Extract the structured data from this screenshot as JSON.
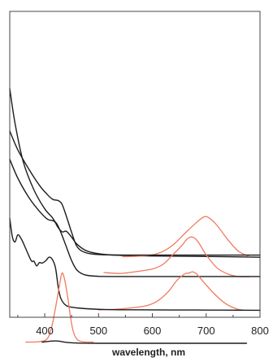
{
  "chart_data": {
    "type": "line",
    "title": "",
    "xlabel": "wavelength, nm",
    "ylabel": "",
    "xlim": [
      335,
      800
    ],
    "xticks": [
      400,
      500,
      600,
      700,
      800
    ],
    "grid": false,
    "legend": "none",
    "y_units": "arbitrary, vertically offset traces",
    "colors": {
      "absorption": "#1c1c1c",
      "emission": "#f07a5f"
    },
    "series": [
      {
        "kind": "absorption",
        "points": [
          [
            335,
            98
          ],
          [
            345,
            83
          ],
          [
            360,
            67
          ],
          [
            380,
            55
          ],
          [
            400,
            47
          ],
          [
            415,
            43
          ],
          [
            425,
            39
          ],
          [
            433,
            37.2
          ],
          [
            440,
            37.5
          ],
          [
            450,
            35
          ],
          [
            460,
            32
          ],
          [
            480,
            29
          ],
          [
            520,
            27.5
          ],
          [
            600,
            27
          ],
          [
            700,
            26.8
          ],
          [
            800,
            26.5
          ]
        ]
      },
      {
        "kind": "emission",
        "points": [
          [
            545,
            26.7
          ],
          [
            560,
            26.8
          ],
          [
            580,
            27
          ],
          [
            600,
            27.5
          ],
          [
            620,
            29
          ],
          [
            640,
            32
          ],
          [
            660,
            36.5
          ],
          [
            680,
            40.8
          ],
          [
            695,
            43.5
          ],
          [
            705,
            43.2
          ],
          [
            720,
            40
          ],
          [
            740,
            34
          ],
          [
            760,
            29
          ],
          [
            780,
            26.8
          ]
        ]
      },
      {
        "kind": "absorption",
        "points": [
          [
            335,
            80
          ],
          [
            350,
            72
          ],
          [
            370,
            64
          ],
          [
            390,
            57
          ],
          [
            405,
            53
          ],
          [
            415,
            51
          ],
          [
            425,
            50.5
          ],
          [
            432,
            49
          ],
          [
            440,
            44
          ],
          [
            450,
            37
          ],
          [
            460,
            31
          ],
          [
            475,
            28.5
          ],
          [
            500,
            27.6
          ],
          [
            550,
            27.4
          ],
          [
            650,
            27.4
          ],
          [
            800,
            27.4
          ]
        ]
      },
      {
        "kind": "emission",
        "points": [
          [
            510,
            20
          ],
          [
            540,
            19.6
          ],
          [
            570,
            20.4
          ],
          [
            600,
            21.5
          ],
          [
            620,
            23.5
          ],
          [
            640,
            28
          ],
          [
            655,
            31.5
          ],
          [
            665,
            34.3
          ],
          [
            675,
            35
          ],
          [
            685,
            33
          ],
          [
            700,
            27.5
          ],
          [
            720,
            22
          ],
          [
            740,
            19.4
          ],
          [
            760,
            18.3
          ],
          [
            780,
            18.2
          ]
        ]
      },
      {
        "kind": "absorption",
        "points": [
          [
            335,
            68
          ],
          [
            350,
            60
          ],
          [
            370,
            52
          ],
          [
            390,
            46
          ],
          [
            405,
            42.6
          ],
          [
            415,
            42
          ],
          [
            422,
            40.8
          ],
          [
            430,
            37
          ],
          [
            440,
            31
          ],
          [
            450,
            25
          ],
          [
            460,
            21
          ],
          [
            475,
            19
          ],
          [
            500,
            18.4
          ],
          [
            550,
            18.3
          ],
          [
            650,
            18.3
          ],
          [
            800,
            18.3
          ]
        ]
      },
      {
        "kind": "emission",
        "points": [
          [
            500,
            4.2
          ],
          [
            530,
            4.4
          ],
          [
            560,
            5
          ],
          [
            590,
            6
          ],
          [
            610,
            8
          ],
          [
            630,
            12
          ],
          [
            645,
            16.5
          ],
          [
            660,
            19.4
          ],
          [
            668,
            19.8
          ],
          [
            675,
            20.3
          ],
          [
            683,
            19.2
          ],
          [
            695,
            16
          ],
          [
            715,
            11
          ],
          [
            735,
            7
          ],
          [
            755,
            4.7
          ],
          [
            770,
            4
          ]
        ]
      },
      {
        "kind": "absorption",
        "points": [
          [
            335,
            43
          ],
          [
            340,
            35
          ],
          [
            345,
            33
          ],
          [
            350,
            36
          ],
          [
            357,
            34
          ],
          [
            365,
            30
          ],
          [
            375,
            25
          ],
          [
            380,
            24.8
          ],
          [
            385,
            22.8
          ],
          [
            390,
            24.2
          ],
          [
            395,
            24
          ],
          [
            402,
            25
          ],
          [
            408,
            26.5
          ],
          [
            414,
            25.6
          ],
          [
            420,
            22
          ],
          [
            425,
            14
          ],
          [
            430,
            9
          ],
          [
            440,
            6
          ],
          [
            460,
            5
          ],
          [
            500,
            4.4
          ],
          [
            560,
            4.2
          ],
          [
            680,
            4.1
          ],
          [
            800,
            4
          ]
        ]
      },
      {
        "kind": "emission",
        "points": [
          [
            365,
            -9.5
          ],
          [
            390,
            -9.3
          ],
          [
            405,
            -8
          ],
          [
            413,
            -3
          ],
          [
            420,
            5
          ],
          [
            427,
            14
          ],
          [
            432,
            19.7
          ],
          [
            437,
            17
          ],
          [
            443,
            9
          ],
          [
            448,
            1
          ],
          [
            453,
            -5
          ],
          [
            460,
            -8.3
          ],
          [
            470,
            -9.3
          ],
          [
            490,
            -9.5
          ]
        ]
      },
      {
        "kind": "absorption",
        "points": [
          [
            395,
            -9.5
          ],
          [
            420,
            -9
          ],
          [
            440,
            -9.6
          ],
          [
            460,
            -9.9
          ],
          [
            500,
            -10
          ],
          [
            600,
            -10
          ],
          [
            775,
            -10
          ]
        ]
      }
    ]
  }
}
